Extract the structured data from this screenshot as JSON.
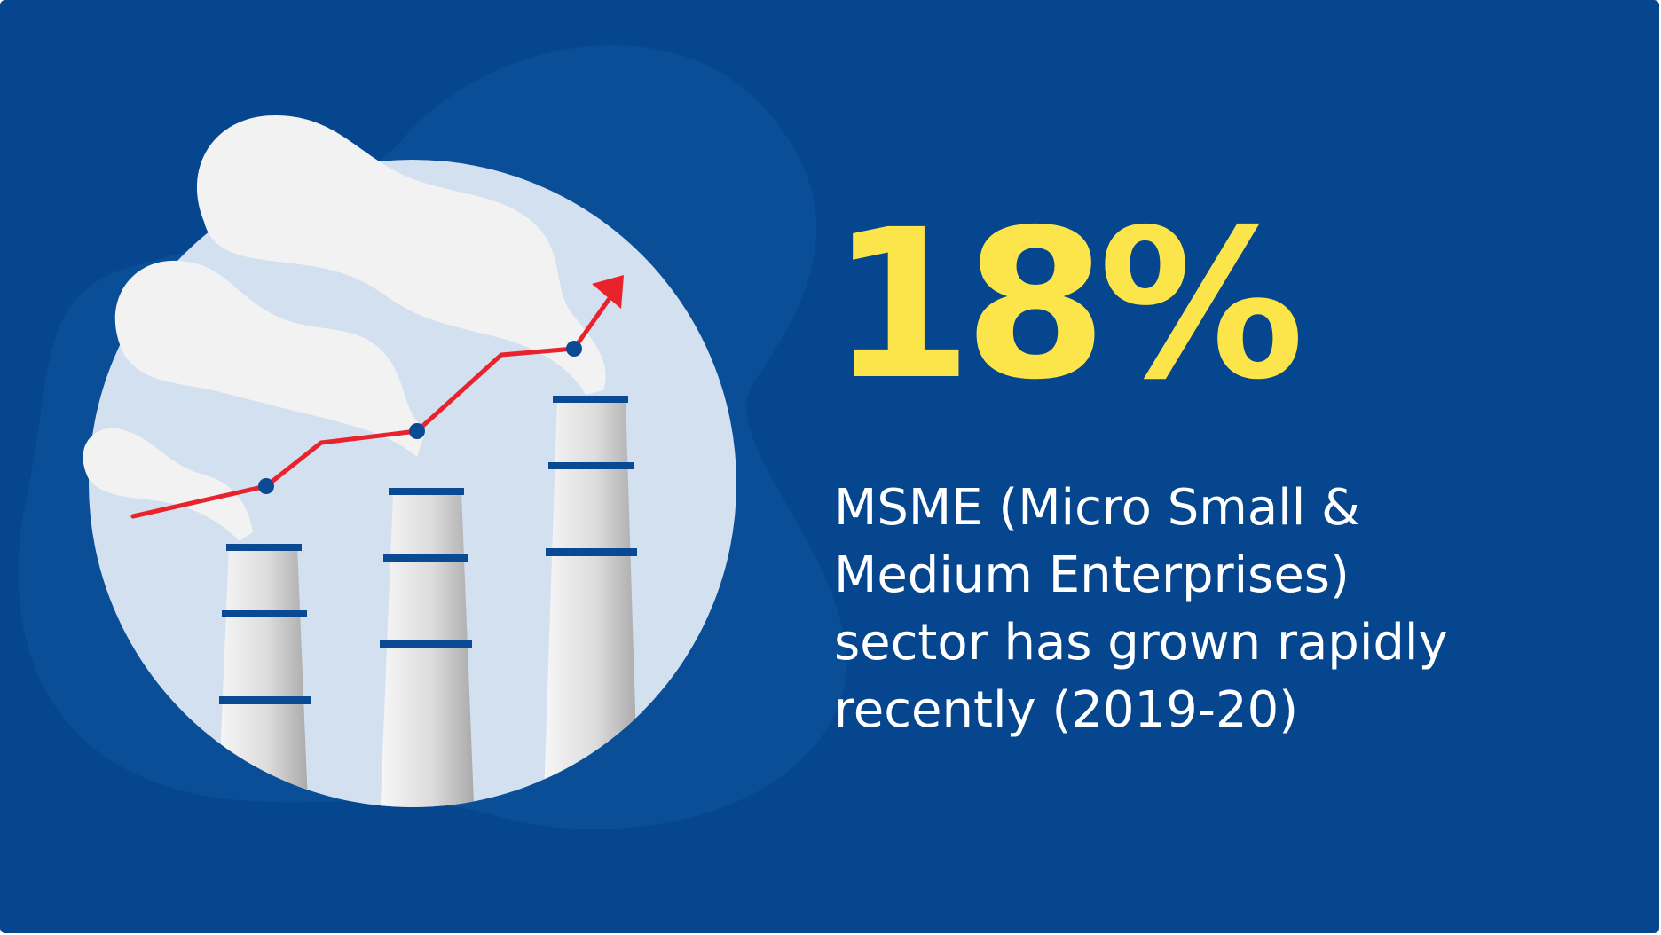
{
  "stat": {
    "value": "18%"
  },
  "description": {
    "line1": "MSME (Micro Small &",
    "line2": "Medium Enterprises)",
    "line3": "sector has grown rapidly",
    "line4": "recently (2019-20)"
  },
  "colors": {
    "background": "#05468f",
    "accent": "#fce54a",
    "trend_line": "#e8232b",
    "circle": "#d3e0ef",
    "smoke": "#f1f2f4"
  },
  "icons": {
    "illustration": "factory-chimneys-growth-illustration",
    "trend": "trend-arrow-icon"
  }
}
